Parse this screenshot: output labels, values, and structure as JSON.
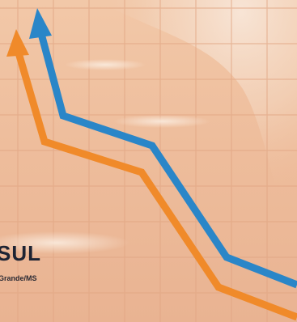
{
  "background": {
    "base_color": "#f0c3a3",
    "grid_color": "#e2a684",
    "wash_color": "#f7e4d6"
  },
  "lines": [
    {
      "name": "",
      "color": "#2a86c8",
      "icon": "arrow-up-icon"
    },
    {
      "name": "",
      "color": "#f08a2a",
      "icon": "arrow-up-icon"
    }
  ],
  "logo": {
    "title": "SUL",
    "subtitle": "Grande/MS",
    "color": "#1d2333"
  }
}
